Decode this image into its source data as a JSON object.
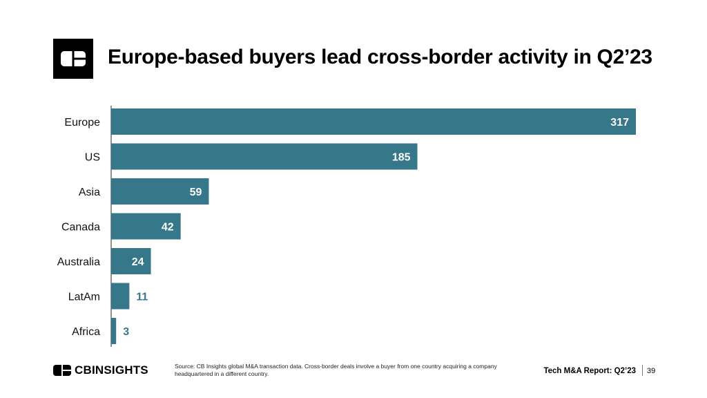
{
  "header": {
    "title": "Europe-based buyers lead cross-border activity in Q2’23",
    "logo_icon": "cb-logo-icon"
  },
  "chart_data": {
    "type": "bar",
    "orientation": "horizontal",
    "categories": [
      "Europe",
      "US",
      "Asia",
      "Canada",
      "Australia",
      "LatAm",
      "Africa"
    ],
    "values": [
      317,
      185,
      59,
      42,
      24,
      11,
      3
    ],
    "xlim": [
      0,
      317
    ],
    "grid": false,
    "bar_color": "#36788A",
    "label_color_inside": "#FFFFFF",
    "label_color_outside": "#36788A"
  },
  "footer": {
    "brand": "CBINSIGHTS",
    "source": "Source: CB Insights global M&A transaction data. Cross-border deals involve a buyer from one country acquiring a company headquartered in a different country.",
    "report": "Tech M&A Report: Q2’23",
    "page": "39"
  }
}
